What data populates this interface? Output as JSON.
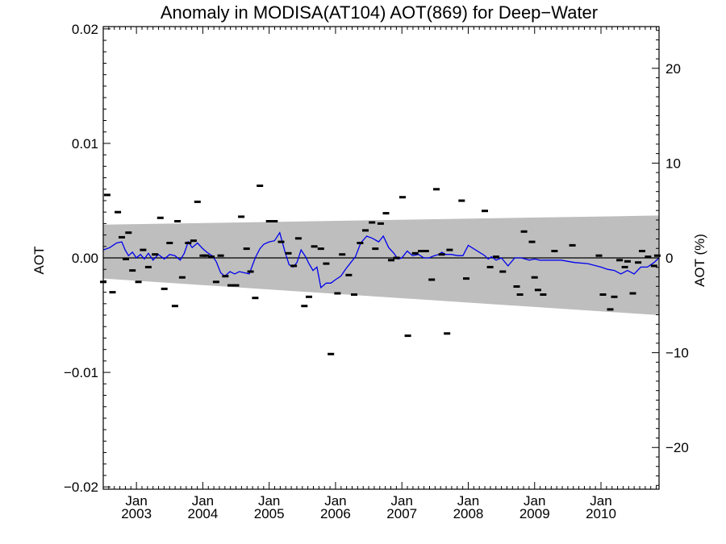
{
  "chart_data": {
    "type": "scatter",
    "title": "Anomaly in MODISA(AT104) AOT(869) for Deep−Water",
    "xlabel": "",
    "ylabel": "AOT",
    "ylabel_right": "AOT (%)",
    "x_range": [
      2002.5,
      2010.875
    ],
    "ylim": [
      -0.0202,
      0.0202
    ],
    "ylim_right": [
      -24.4,
      24.4
    ],
    "yticks": [
      {
        "value": 0.02,
        "label": "0.02"
      },
      {
        "value": 0.01,
        "label": "0.01"
      },
      {
        "value": 0.0,
        "label": "0.00"
      },
      {
        "value": -0.01,
        "label": "−0.01"
      },
      {
        "value": -0.02,
        "label": "−0.02"
      }
    ],
    "yticks_right": [
      {
        "value": 20,
        "label": "20"
      },
      {
        "value": 10,
        "label": "10"
      },
      {
        "value": 0,
        "label": "0"
      },
      {
        "value": -10,
        "label": "−10"
      },
      {
        "value": -20,
        "label": "−20"
      }
    ],
    "xticks": [
      {
        "value": 2003.0,
        "month": "Jan",
        "year": "2003"
      },
      {
        "value": 2004.0,
        "month": "Jan",
        "year": "2004"
      },
      {
        "value": 2005.0,
        "month": "Jan",
        "year": "2005"
      },
      {
        "value": 2006.0,
        "month": "Jan",
        "year": "2006"
      },
      {
        "value": 2007.0,
        "month": "Jan",
        "year": "2007"
      },
      {
        "value": 2008.0,
        "month": "Jan",
        "year": "2008"
      },
      {
        "value": 2009.0,
        "month": "Jan",
        "year": "2009"
      },
      {
        "value": 2010.0,
        "month": "Jan",
        "year": "2010"
      }
    ],
    "band": {
      "x": [
        2002.5,
        2010.875
      ],
      "upper": [
        0.0029,
        0.0037
      ],
      "lower": [
        -0.0018,
        -0.005
      ]
    },
    "colors": {
      "band": "#bebebe",
      "line": "#0000ee",
      "points": "#000000",
      "zero_line": "#000000"
    },
    "grid": false,
    "series": [
      {
        "kind": "points",
        "x": [
          2002.5,
          2002.56,
          2002.64,
          2002.72,
          2002.78,
          2002.84,
          2002.88,
          2002.94,
          2003.03,
          2003.1,
          2003.18,
          2003.28,
          2003.36,
          2003.42,
          2003.5,
          2003.58,
          2003.62,
          2003.69,
          2003.78,
          2003.86,
          2003.92,
          2004.0,
          2004.05,
          2004.13,
          2004.2,
          2004.27,
          2004.34,
          2004.42,
          2004.5,
          2004.58,
          2004.66,
          2004.72,
          2004.79,
          2004.86,
          2005.0,
          2005.08,
          2005.18,
          2005.29,
          2005.37,
          2005.44,
          2005.53,
          2005.6,
          2005.68,
          2005.78,
          2005.86,
          2005.93,
          2006.03,
          2006.1,
          2006.2,
          2006.28,
          2006.37,
          2006.45,
          2006.55,
          2006.6,
          2006.68,
          2006.76,
          2006.84,
          2006.92,
          2007.01,
          2007.09,
          2007.2,
          2007.29,
          2007.36,
          2007.45,
          2007.52,
          2007.6,
          2007.68,
          2007.72,
          2007.9,
          2007.97,
          2008.25,
          2008.33,
          2008.42,
          2008.52,
          2008.73,
          2008.78,
          2008.84,
          2008.96,
          2009.0,
          2009.05,
          2009.13,
          2009.3,
          2009.57,
          2009.97,
          2010.03,
          2010.14,
          2010.2,
          2010.28,
          2010.36,
          2010.4,
          2010.48,
          2010.56,
          2010.62,
          2010.71,
          2010.8,
          2010.85
        ],
        "y": [
          -0.0021,
          0.0055,
          -0.003,
          0.004,
          0.0018,
          -0.0001,
          0.0022,
          -0.0011,
          -0.0021,
          0.0007,
          -0.0008,
          0.0003,
          0.0035,
          -0.0027,
          0.0013,
          -0.0042,
          0.0032,
          -0.0017,
          0.0013,
          0.0015,
          0.0049,
          0.0002,
          0.0002,
          0.0001,
          -0.0021,
          0.0002,
          -0.0016,
          -0.0024,
          -0.0024,
          0.0036,
          0.0008,
          -0.0012,
          -0.0035,
          0.0063,
          0.0032,
          0.0032,
          0.0014,
          0.0004,
          -0.0007,
          0.0017,
          -0.0042,
          -0.0034,
          0.001,
          0.0008,
          -0.0005,
          -0.0084,
          -0.0031,
          0.0003,
          -0.0015,
          -0.0032,
          0.0013,
          0.0024,
          0.0031,
          0.0008,
          0.003,
          0.0039,
          -0.0002,
          0.0,
          0.0053,
          -0.0068,
          0.0004,
          0.0006,
          0.0006,
          -0.0019,
          0.006,
          0.0003,
          -0.0066,
          0.0007,
          0.005,
          -0.0018,
          0.0041,
          -0.0008,
          0.0001,
          -0.0012,
          -0.0025,
          -0.0032,
          0.0023,
          0.0014,
          -0.0017,
          -0.0028,
          -0.0032,
          0.0006,
          0.0011,
          0.0002,
          -0.0032,
          -0.0045,
          -0.0034,
          -0.0002,
          -0.0008,
          -0.0003,
          -0.0031,
          -0.0004,
          0.0006,
          0.0001,
          -0.0007,
          0.0002
        ]
      },
      {
        "kind": "line",
        "x": [
          2002.5,
          2002.6,
          2002.7,
          2002.78,
          2002.83,
          2002.88,
          2002.94,
          2003.0,
          2003.06,
          2003.12,
          2003.18,
          2003.25,
          2003.33,
          2003.42,
          2003.5,
          2003.58,
          2003.66,
          2003.72,
          2003.78,
          2003.84,
          2003.92,
          2004.0,
          2004.06,
          2004.14,
          2004.2,
          2004.27,
          2004.33,
          2004.41,
          2004.48,
          2004.55,
          2004.63,
          2004.7,
          2004.79,
          2004.86,
          2004.92,
          2005.0,
          2005.08,
          2005.16,
          2005.24,
          2005.3,
          2005.36,
          2005.42,
          2005.48,
          2005.55,
          2005.6,
          2005.66,
          2005.72,
          2005.78,
          2005.86,
          2005.93,
          2006.0,
          2006.08,
          2006.15,
          2006.23,
          2006.3,
          2006.38,
          2006.47,
          2006.56,
          2006.65,
          2006.72,
          2006.8,
          2006.88,
          2006.94,
          2007.0,
          2007.08,
          2007.16,
          2007.25,
          2007.33,
          2007.41,
          2007.49,
          2007.56,
          2007.6,
          2007.66,
          2007.74,
          2007.84,
          2007.92,
          2008.0,
          2008.25,
          2008.3,
          2008.35,
          2008.42,
          2008.5,
          2008.6,
          2008.7,
          2008.8,
          2008.86,
          2008.92,
          2009.0,
          2009.08,
          2009.16,
          2009.25,
          2009.4,
          2009.6,
          2009.8,
          2010.0,
          2010.1,
          2010.2,
          2010.3,
          2010.4,
          2010.5,
          2010.6,
          2010.7,
          2010.8,
          2010.875
        ],
        "y": [
          0.0007,
          0.0009,
          0.0013,
          0.0014,
          0.0007,
          0.0002,
          0.0005,
          0.0,
          0.0003,
          -0.0001,
          0.0004,
          -0.0002,
          0.0003,
          -0.0001,
          0.0003,
          0.0002,
          -0.0002,
          0.0004,
          0.0014,
          0.0009,
          0.0013,
          0.0008,
          0.0005,
          0.0002,
          -0.0003,
          -0.0013,
          -0.0016,
          -0.0012,
          -0.0014,
          -0.0012,
          -0.0013,
          -0.0014,
          0.0,
          0.0008,
          0.0012,
          0.0014,
          0.0015,
          0.0022,
          0.0005,
          -0.0006,
          -0.0008,
          -0.0004,
          0.0007,
          0.0001,
          -0.0005,
          -0.0011,
          -0.0008,
          -0.0026,
          -0.0022,
          -0.0022,
          -0.0019,
          -0.0016,
          -0.001,
          -0.0004,
          0.0001,
          0.0013,
          0.0019,
          0.0017,
          0.0014,
          0.0019,
          0.0009,
          0.0004,
          -0.0001,
          0.0,
          0.0006,
          0.0002,
          0.0003,
          0.0,
          0.0,
          0.0002,
          0.0003,
          0.0005,
          0.0003,
          0.0003,
          0.0002,
          0.0002,
          0.0011,
          0.0002,
          -0.0001,
          0.0001,
          -0.0002,
          0.0,
          -0.0007,
          0.0,
          0.0,
          -0.0001,
          -0.0002,
          -0.0001,
          -0.0002,
          -0.0002,
          -0.0002,
          -0.0002,
          -0.0004,
          -0.0005,
          -0.0008,
          -0.001,
          -0.0011,
          -0.0014,
          -0.0011,
          -0.0014,
          -0.0008,
          -0.0008,
          -0.0004,
          0.0
        ]
      }
    ]
  }
}
